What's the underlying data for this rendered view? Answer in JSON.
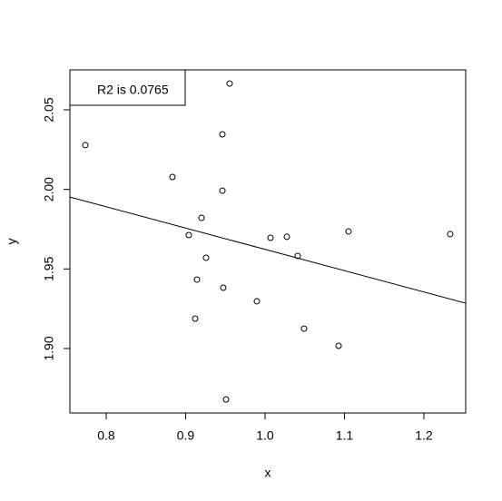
{
  "chart_data": {
    "type": "scatter",
    "x_label": "x",
    "y_label": "y",
    "annotation": "R2 is 0.0765",
    "x": [
      0.7737,
      0.8834,
      0.9463,
      0.9554,
      0.9463,
      0.92,
      0.904,
      0.9257,
      0.9143,
      0.9474,
      0.912,
      0.9509,
      0.9897,
      1.0069,
      1.0274,
      1.0411,
      1.0491,
      1.0926,
      1.1051,
      1.2331
    ],
    "values": [
      2.0278,
      2.0078,
      2.0346,
      2.0665,
      1.9992,
      1.9821,
      1.9713,
      1.957,
      1.9433,
      1.9382,
      1.9188,
      1.868,
      1.9297,
      1.9696,
      1.9702,
      1.9582,
      1.9125,
      1.9017,
      1.9736,
      1.9719
    ],
    "color": "#000000",
    "fit": {
      "intercept": 2.0962,
      "slope": -0.1339
    },
    "xlim": [
      0.7543,
      1.2526
    ],
    "ylim": [
      1.8595,
      2.0751
    ],
    "xticks": [
      0.8,
      0.9,
      {
        "value": 1.0,
        "label": "1.0"
      },
      1.1,
      1.2
    ],
    "yticks": [
      {
        "value": 1.9,
        "label": "1.90"
      },
      1.95,
      {
        "value": 2.0,
        "label": "2.00"
      },
      2.05
    ]
  }
}
